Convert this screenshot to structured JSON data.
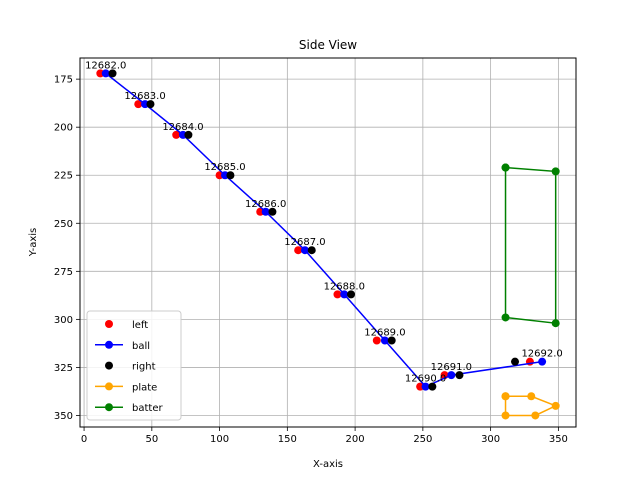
{
  "chart_data": {
    "type": "scatter",
    "title": "Side View",
    "xlabel": "X-axis",
    "ylabel": "Y-axis",
    "xlim": [
      -3,
      363
    ],
    "ylim": [
      356,
      164
    ],
    "y_inverted": true,
    "grid": true,
    "legend_position": "lower-left",
    "x_ticks": [
      0,
      50,
      100,
      150,
      200,
      250,
      300,
      350
    ],
    "y_ticks": [
      175,
      200,
      225,
      250,
      275,
      300,
      325,
      350
    ],
    "colors": {
      "left": "#ff0000",
      "ball": "#0000ff",
      "right": "#000000",
      "plate": "#ffa500",
      "batter": "#008000"
    },
    "series": [
      {
        "name": "left",
        "style": "markers",
        "color": "#ff0000",
        "points": [
          [
            12,
            172
          ],
          [
            40,
            188
          ],
          [
            68,
            204
          ],
          [
            100,
            225
          ],
          [
            130,
            244
          ],
          [
            158,
            264
          ],
          [
            187,
            287
          ],
          [
            216,
            311
          ],
          [
            248,
            335
          ],
          [
            266,
            329
          ],
          [
            329,
            322
          ]
        ]
      },
      {
        "name": "ball",
        "style": "line-markers",
        "color": "#0000ff",
        "points": [
          [
            16,
            172
          ],
          [
            45,
            188
          ],
          [
            73,
            204
          ],
          [
            104,
            225
          ],
          [
            134,
            244
          ],
          [
            163,
            264
          ],
          [
            192,
            287
          ],
          [
            222,
            311
          ],
          [
            252,
            335
          ],
          [
            271,
            329
          ],
          [
            338,
            322
          ]
        ]
      },
      {
        "name": "right",
        "style": "markers",
        "color": "#000000",
        "points": [
          [
            21,
            172
          ],
          [
            49,
            188
          ],
          [
            77,
            204
          ],
          [
            108,
            225
          ],
          [
            139,
            244
          ],
          [
            168,
            264
          ],
          [
            197,
            287
          ],
          [
            227,
            311
          ],
          [
            257,
            335
          ],
          [
            277,
            329
          ],
          [
            318,
            322
          ]
        ]
      },
      {
        "name": "plate",
        "style": "line-markers",
        "color": "#ffa500",
        "points": [
          [
            311,
            340
          ],
          [
            330,
            340
          ],
          [
            348,
            345
          ],
          [
            333,
            350
          ],
          [
            311,
            350
          ],
          [
            311,
            340
          ]
        ]
      },
      {
        "name": "batter",
        "style": "line-markers",
        "color": "#008000",
        "points": [
          [
            311,
            221
          ],
          [
            348,
            223
          ],
          [
            348,
            302
          ],
          [
            311,
            299
          ],
          [
            311,
            221
          ]
        ]
      }
    ],
    "annotations": [
      {
        "text": "12682.0",
        "x": 16,
        "y": 172
      },
      {
        "text": "12683.0",
        "x": 45,
        "y": 188
      },
      {
        "text": "12684.0",
        "x": 73,
        "y": 204
      },
      {
        "text": "12685.0",
        "x": 104,
        "y": 225
      },
      {
        "text": "12686.0",
        "x": 134,
        "y": 244
      },
      {
        "text": "12687.0",
        "x": 163,
        "y": 264
      },
      {
        "text": "12688.0",
        "x": 192,
        "y": 287
      },
      {
        "text": "12689.0",
        "x": 222,
        "y": 311
      },
      {
        "text": "12690.0",
        "x": 252,
        "y": 335
      },
      {
        "text": "12691.0",
        "x": 271,
        "y": 329
      },
      {
        "text": "12692.0",
        "x": 338,
        "y": 322
      }
    ]
  }
}
